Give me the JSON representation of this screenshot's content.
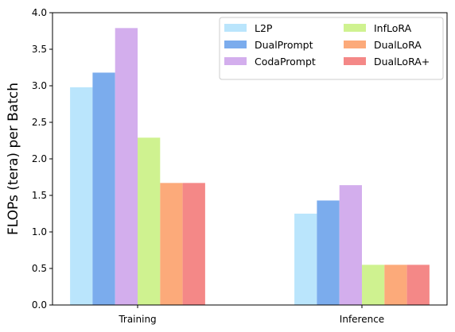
{
  "chart_data": {
    "type": "bar",
    "title": "",
    "xlabel": "",
    "ylabel": "FLOPs (tera) per Batch",
    "categories": [
      "Training",
      "Inference"
    ],
    "ylim": [
      0,
      4.0
    ],
    "yticks": [
      "0.0",
      "0.5",
      "1.0",
      "1.5",
      "2.0",
      "2.5",
      "3.0",
      "3.5",
      "4.0"
    ],
    "grid": false,
    "legend_position": "top-right",
    "legend_columns": 2,
    "series": [
      {
        "name": "L2P",
        "color": "#bae5fc",
        "values": [
          2.98,
          1.25
        ]
      },
      {
        "name": "DualPrompt",
        "color": "#7baced",
        "values": [
          3.18,
          1.43
        ]
      },
      {
        "name": "CodaPrompt",
        "color": "#d3aeed",
        "values": [
          3.79,
          1.64
        ]
      },
      {
        "name": "InfLoRA",
        "color": "#cff290",
        "values": [
          2.29,
          0.55
        ]
      },
      {
        "name": "DualLoRA",
        "color": "#fcaa7a",
        "values": [
          1.67,
          0.55
        ]
      },
      {
        "name": "DualLoRA+",
        "color": "#f48887",
        "values": [
          1.67,
          0.55
        ]
      }
    ]
  }
}
